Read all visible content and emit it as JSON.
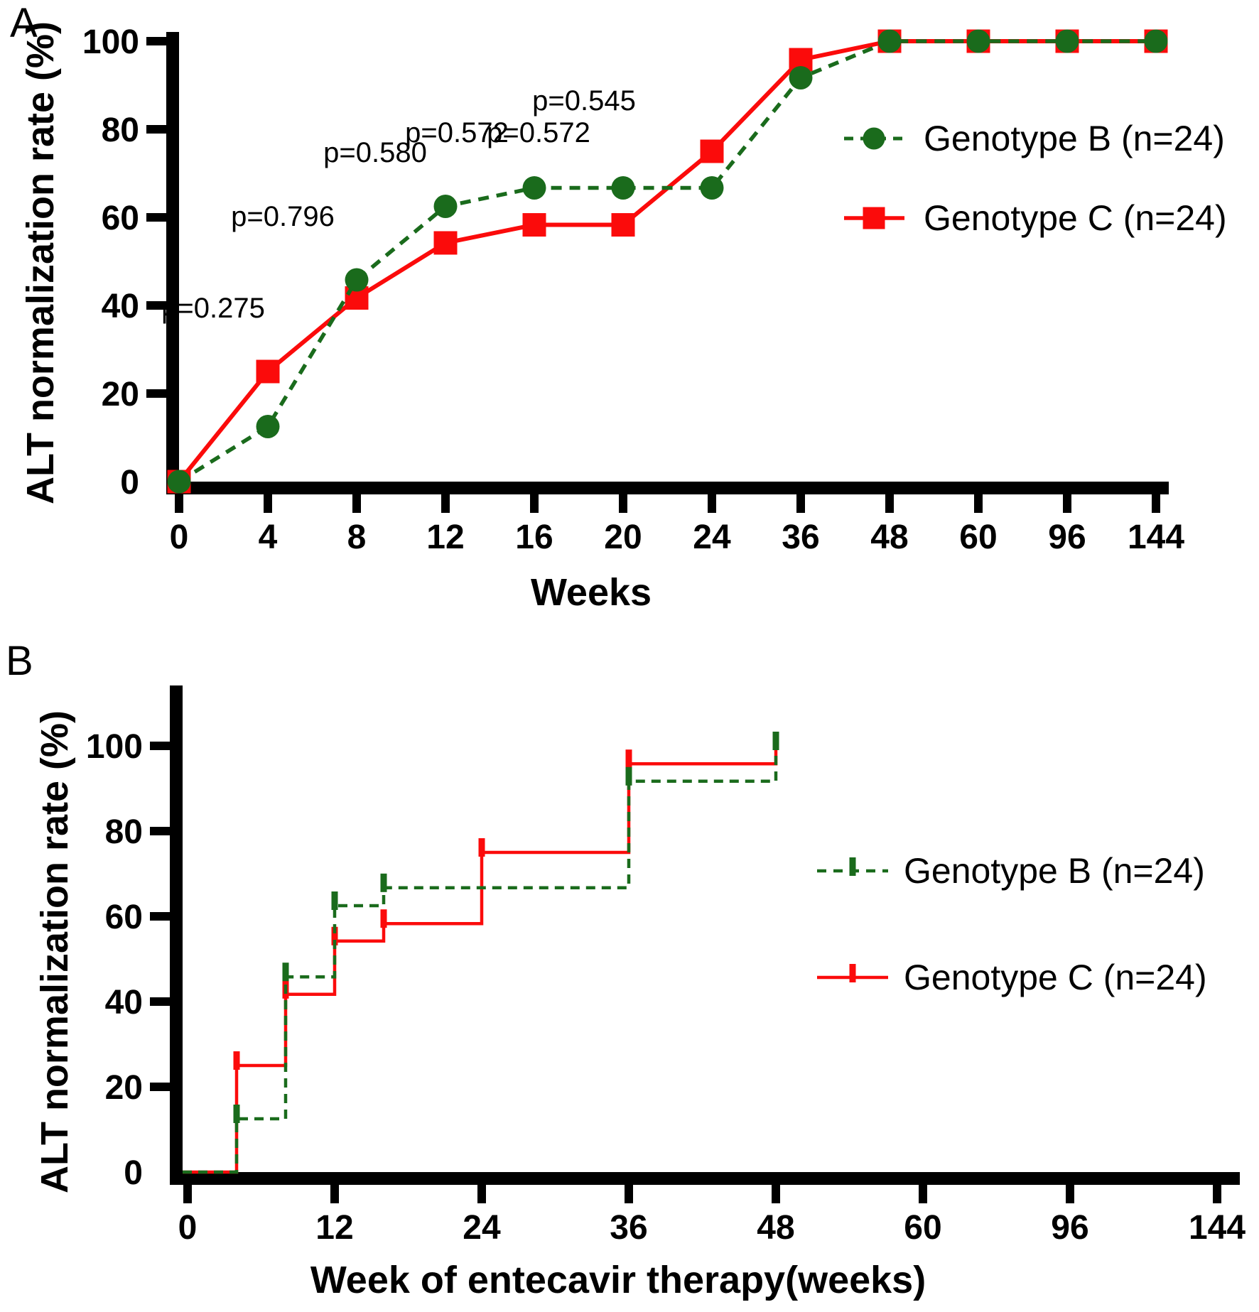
{
  "figure": {
    "panel_a_label": "A",
    "panel_b_label": "B",
    "colors": {
      "genotype_b": "#1a6b1c",
      "genotype_c": "#fb0b0b",
      "axis": "#000000",
      "text": "#000000",
      "background": "#ffffff"
    }
  },
  "chart_data": [
    {
      "id": "panel_a",
      "type": "line",
      "title": "",
      "xlabel": "Weeks",
      "ylabel": "ALT normalization rate (%)",
      "ylim": [
        0,
        100
      ],
      "yticks": [
        0,
        20,
        40,
        60,
        80,
        100
      ],
      "categories": [
        0,
        4,
        8,
        12,
        16,
        20,
        24,
        36,
        48,
        60,
        96,
        144
      ],
      "grid": false,
      "legend_position": "right-top",
      "series": [
        {
          "name": "Genotype B (n=24)",
          "color_key": "genotype_b",
          "line": "dashed",
          "marker": "circle",
          "values": [
            0,
            12.5,
            45.8,
            62.5,
            66.7,
            66.7,
            66.7,
            91.7,
            100,
            100,
            100,
            100
          ]
        },
        {
          "name": "Genotype C (n=24)",
          "color_key": "genotype_c",
          "line": "solid",
          "marker": "square",
          "values": [
            0,
            25,
            41.7,
            54.2,
            58.3,
            58.3,
            75,
            95.8,
            100,
            100,
            100,
            100
          ]
        }
      ],
      "annotations": [
        {
          "label": "p=0.275",
          "x": 300,
          "y": 447
        },
        {
          "label": "p=0.796",
          "x": 398,
          "y": 318
        },
        {
          "label": "p=0.580",
          "x": 528,
          "y": 228
        },
        {
          "label": "p=0.572",
          "x": 643,
          "y": 200
        },
        {
          "label": "p=0.572",
          "x": 758,
          "y": 200
        },
        {
          "label": "p=0.545",
          "x": 822,
          "y": 155
        }
      ]
    },
    {
      "id": "panel_b",
      "type": "step",
      "title": "",
      "xlabel": "Week of entecavir therapy(weeks)",
      "ylabel": "ALT normalization rate (%)",
      "ylim": [
        0,
        100
      ],
      "yticks": [
        0,
        20,
        40,
        60,
        80,
        100
      ],
      "axis_categories": [
        0,
        12,
        24,
        36,
        48,
        60,
        96,
        144
      ],
      "event_weeks": [
        0,
        4,
        8,
        12,
        16,
        20,
        24,
        36,
        48
      ],
      "grid": false,
      "legend_position": "right-middle",
      "series": [
        {
          "name": "Genotype B (n=24)",
          "color_key": "genotype_b",
          "line": "dashed",
          "marker": "tick",
          "values": [
            0,
            12.5,
            45.8,
            62.5,
            66.7,
            66.7,
            66.7,
            91.7,
            100
          ]
        },
        {
          "name": "Genotype C (n=24)",
          "color_key": "genotype_c",
          "line": "solid",
          "marker": "tick",
          "values": [
            0,
            25,
            41.7,
            54.2,
            58.3,
            58.3,
            75,
            95.8,
            100
          ]
        }
      ]
    }
  ]
}
